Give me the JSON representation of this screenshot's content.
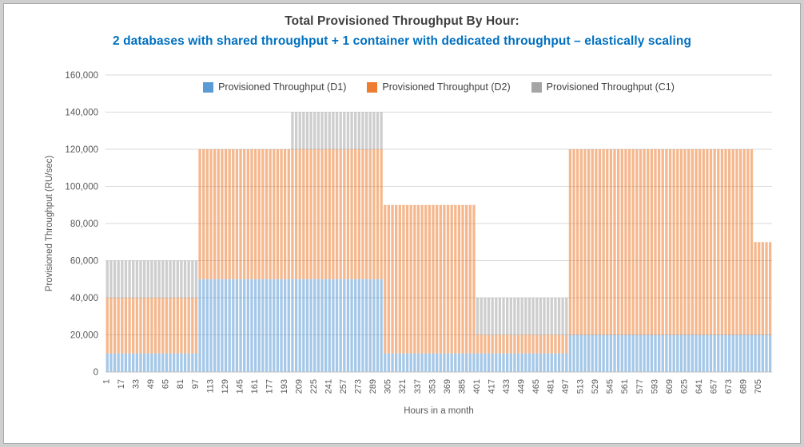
{
  "chart_data": {
    "type": "bar",
    "stacked": true,
    "title": "Total Provisioned Throughput By Hour:",
    "subtitle": "2 databases with shared throughput + 1 container with dedicated throughput – elastically scaling",
    "subtitle_color": "#0070C0",
    "xlabel": "Hours in a month",
    "ylabel": "Provisioned Throughput (RU/sec)",
    "x_range": [
      1,
      720
    ],
    "ylim": [
      0,
      160000
    ],
    "grid": true,
    "legend_position": "top-center",
    "bar_group_hours": 4,
    "series_colors": {
      "D1": "#5B9BD5",
      "D2": "#ED7D31",
      "C1": "#A5A5A5"
    },
    "legend": [
      {
        "key": "D1",
        "label": "Provisioned Throughput (D1)"
      },
      {
        "key": "D2",
        "label": "Provisioned Throughput (D2)"
      },
      {
        "key": "C1",
        "label": "Provisioned Throughput (C1)"
      }
    ],
    "yticks": [
      [
        0,
        "0"
      ],
      [
        20000,
        "20,000"
      ],
      [
        40000,
        "40,000"
      ],
      [
        60000,
        "60,000"
      ],
      [
        80000,
        "80,000"
      ],
      [
        100000,
        "100,000"
      ],
      [
        120000,
        "120,000"
      ],
      [
        140000,
        "140,000"
      ],
      [
        160000,
        "160,000"
      ]
    ],
    "xticks": [
      1,
      17,
      33,
      49,
      65,
      81,
      97,
      113,
      129,
      145,
      161,
      177,
      193,
      209,
      225,
      241,
      257,
      273,
      289,
      305,
      321,
      337,
      353,
      369,
      385,
      401,
      417,
      433,
      449,
      465,
      481,
      497,
      513,
      529,
      545,
      561,
      577,
      593,
      609,
      625,
      641,
      657,
      673,
      689,
      705
    ],
    "segments": [
      {
        "hours": [
          1,
          100
        ],
        "D1": 10000,
        "D2": 30000,
        "C1": 20000,
        "total": 60000
      },
      {
        "hours": [
          101,
          200
        ],
        "D1": 50000,
        "D2": 70000,
        "C1": 0,
        "total": 120000
      },
      {
        "hours": [
          201,
          300
        ],
        "D1": 50000,
        "D2": 70000,
        "C1": 20000,
        "total": 140000
      },
      {
        "hours": [
          301,
          400
        ],
        "D1": 10000,
        "D2": 80000,
        "C1": 0,
        "total": 90000
      },
      {
        "hours": [
          401,
          500
        ],
        "D1": 10000,
        "D2": 10000,
        "C1": 20000,
        "total": 40000
      },
      {
        "hours": [
          501,
          700
        ],
        "D1": 20000,
        "D2": 100000,
        "C1": 0,
        "total": 120000
      },
      {
        "hours": [
          701,
          720
        ],
        "D1": 20000,
        "D2": 50000,
        "C1": 0,
        "total": 70000
      }
    ]
  }
}
